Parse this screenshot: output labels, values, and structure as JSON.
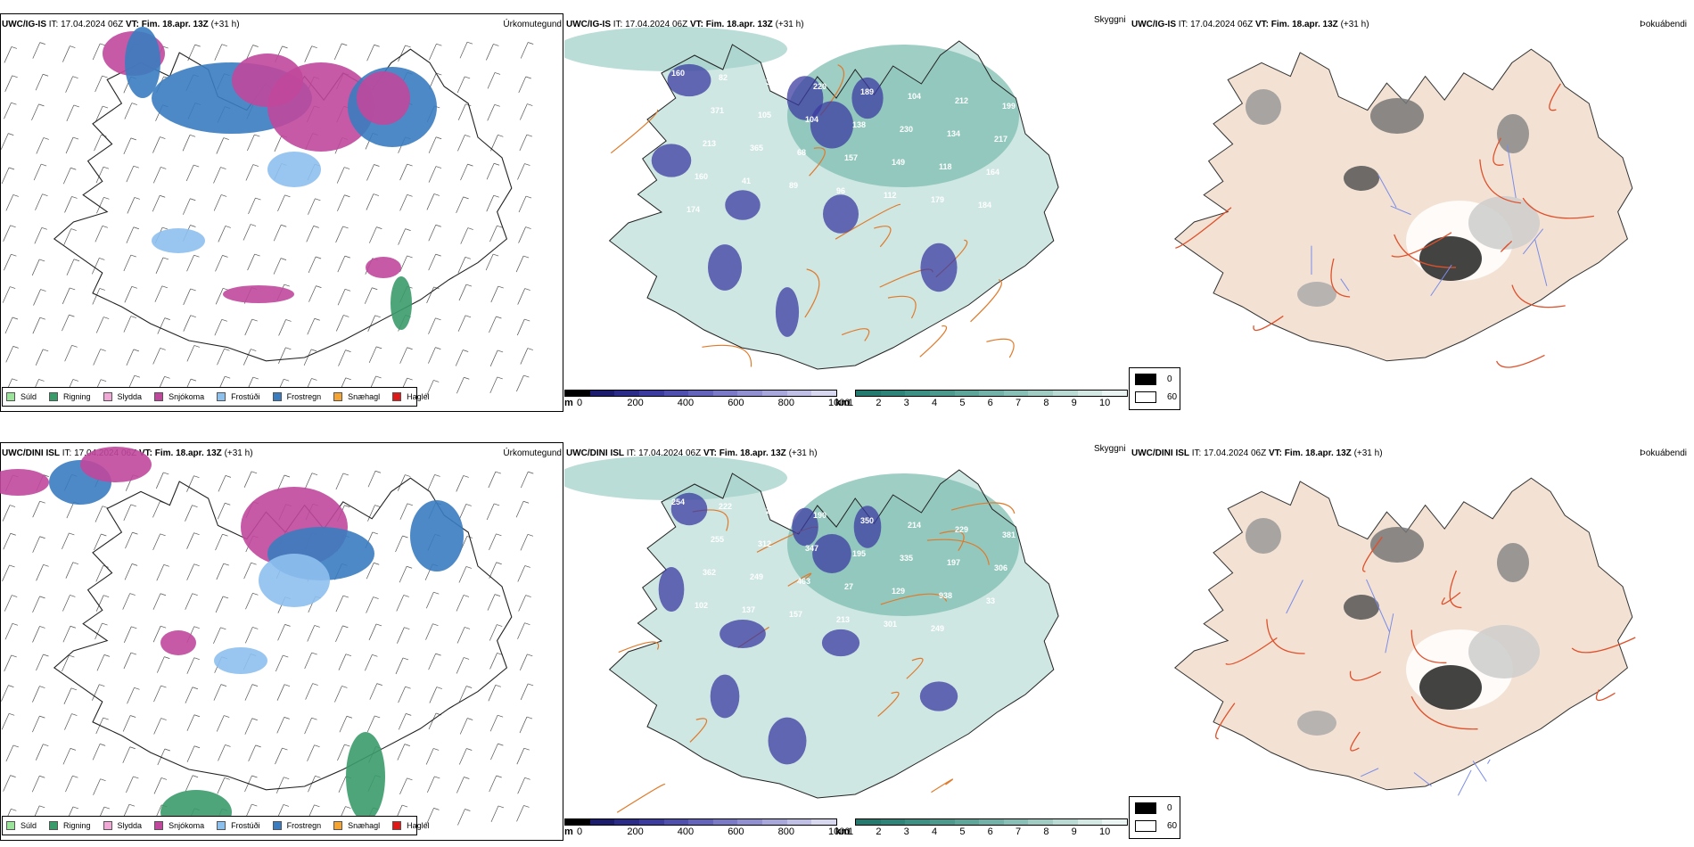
{
  "rows": [
    {
      "model": "UWC/IG-IS",
      "it_label": "IT:",
      "it_value": "17.04.2024 06Z",
      "vt_label": "VT:",
      "vt_value": "Fim. 18.apr. 13Z",
      "lead": "(+31 h)",
      "precip_title": "Úrkomutegund",
      "vis_title": "Skyggni",
      "fog_title": "Þokuábendi",
      "vis_labels": [
        "160",
        "82",
        "320",
        "220",
        "189",
        "104",
        "212",
        "199",
        "371",
        "105",
        "104",
        "138",
        "230",
        "134",
        "217",
        "213",
        "365",
        "68",
        "157",
        "149",
        "118",
        "164",
        "160",
        "41",
        "89",
        "96",
        "112",
        "179",
        "184",
        "174"
      ]
    },
    {
      "model": "UWC/DINI ISL",
      "it_label": "IT:",
      "it_value": "17.04.2024 06Z",
      "vt_label": "VT:",
      "vt_value": "Fim. 18.apr. 13Z",
      "lead": "(+31 h)",
      "precip_title": "Úrkomutegund",
      "vis_title": "Skyggni",
      "fog_title": "Þokuábendi",
      "vis_labels": [
        "254",
        "222",
        "237",
        "190",
        "350",
        "214",
        "229",
        "381",
        "255",
        "312",
        "347",
        "195",
        "335",
        "197",
        "306",
        "362",
        "249",
        "463",
        "27",
        "129",
        "938",
        "33",
        "102",
        "137",
        "157",
        "213",
        "301",
        "249"
      ]
    }
  ],
  "precip_legend": [
    {
      "label": "Súld",
      "color": "#9be39b"
    },
    {
      "label": "Rigning",
      "color": "#3a9b6a"
    },
    {
      "label": "Slydda",
      "color": "#f1a8d6"
    },
    {
      "label": "Snjókoma",
      "color": "#c0489c"
    },
    {
      "label": "Frostúði",
      "color": "#8ec0ee"
    },
    {
      "label": "Frostregn",
      "color": "#3a7cc0"
    },
    {
      "label": "Snæhagl",
      "color": "#f5a432"
    },
    {
      "label": "Haglél",
      "color": "#e01818"
    }
  ],
  "ceiling_bar": {
    "unit": "m",
    "ticks": [
      "0",
      "200",
      "400",
      "600",
      "800",
      "1000"
    ],
    "colors": [
      "#000000",
      "#1c1c6e",
      "#2b2b8a",
      "#3b3ba0",
      "#5050b0",
      "#6464bc",
      "#7a7ac8",
      "#9090d2",
      "#a8a8dc",
      "#c0c0e6",
      "#d8d8f0"
    ]
  },
  "vis_bar": {
    "unit": "km",
    "ticks": [
      "1",
      "2",
      "3",
      "4",
      "5",
      "6",
      "7",
      "8",
      "9",
      "10"
    ],
    "colors": [
      "#247a6e",
      "#2e8478",
      "#3c9084",
      "#4c9a8e",
      "#5ea69a",
      "#72b2a8",
      "#88bfb6",
      "#a0ccc4",
      "#badad4",
      "#d4e8e4",
      "#eaf4f2"
    ]
  },
  "fog_legend": [
    {
      "label": "0",
      "color": "#000000"
    },
    {
      "label": "60",
      "color": "#ffffff"
    }
  ]
}
